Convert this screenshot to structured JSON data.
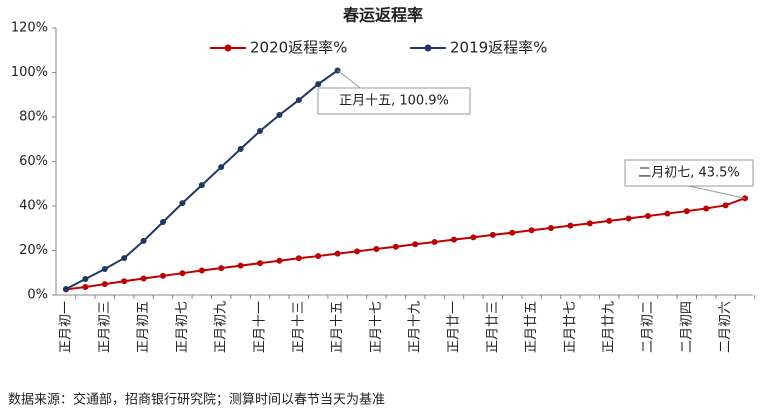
{
  "chart_data": {
    "type": "line",
    "title": "春运返程率",
    "categories": [
      "正月初一",
      null,
      "正月初三",
      null,
      "正月初五",
      null,
      "正月初七",
      null,
      "正月初九",
      null,
      "正月十一",
      null,
      "正月十三",
      null,
      "正月十五",
      null,
      "正月十七",
      null,
      "正月十九",
      null,
      "正月廿一",
      null,
      "正月廿三",
      null,
      "正月廿五",
      null,
      "正月廿七",
      null,
      "正月廿九",
      null,
      "二月初二",
      null,
      "二月初四",
      null,
      "二月初六",
      null
    ],
    "series": [
      {
        "name": "2020返程率%",
        "color": "#c00000",
        "values": [
          2.5,
          3.6,
          4.9,
          6.2,
          7.4,
          8.6,
          9.8,
          11.0,
          12.1,
          13.2,
          14.3,
          15.4,
          16.5,
          17.5,
          18.6,
          19.6,
          20.7,
          21.7,
          22.8,
          23.8,
          24.9,
          25.9,
          27.0,
          28.0,
          29.1,
          30.1,
          31.2,
          32.2,
          33.3,
          34.4,
          35.5,
          36.6,
          37.7,
          38.9,
          40.3,
          43.5
        ]
      },
      {
        "name": "2019返程率%",
        "color": "#1f3864",
        "values": [
          2.7,
          7.2,
          11.7,
          16.6,
          24.3,
          32.8,
          41.3,
          49.4,
          57.5,
          65.6,
          73.7,
          80.9,
          87.6,
          94.8,
          100.9,
          null,
          null,
          null,
          null,
          null,
          null,
          null,
          null,
          null,
          null,
          null,
          null,
          null,
          null,
          null,
          null,
          null,
          null,
          null,
          null,
          null
        ]
      }
    ],
    "annotations": [
      {
        "text": "正月十五, 100.9%"
      },
      {
        "text": "二月初七, 43.5%"
      }
    ],
    "ylim": [
      0,
      120
    ],
    "yticks": [
      {
        "value": 0,
        "label": "0%"
      },
      {
        "value": 20,
        "label": "20%"
      },
      {
        "value": 40,
        "label": "40%"
      },
      {
        "value": 60,
        "label": "60%"
      },
      {
        "value": 80,
        "label": "80%"
      },
      {
        "value": 100,
        "label": "100%"
      },
      {
        "value": 120,
        "label": "120%"
      }
    ],
    "legend": "top",
    "note": "数据来源：交通部，招商银行研究院；测算时间以春节当天为基准"
  }
}
